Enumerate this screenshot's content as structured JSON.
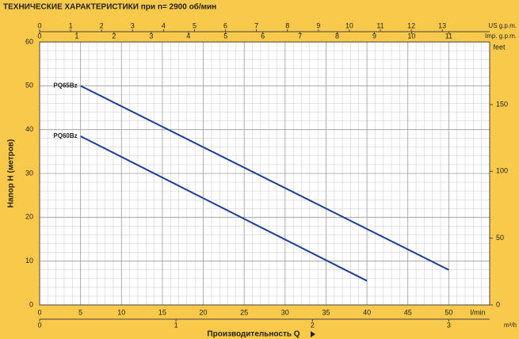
{
  "chart_data": {
    "type": "line",
    "title": "ТЕХНИЧЕСКИЕ ХАРАКТЕРИСТИКИ при n= 2900 об/мин",
    "y_label": "Напор H  (метров)",
    "x_label": "Производительность Q",
    "x_unit": "l/min",
    "xlim": [
      0,
      55
    ],
    "xticks": [
      0,
      5,
      10,
      15,
      20,
      25,
      30,
      35,
      40,
      45,
      50
    ],
    "ylim": [
      0,
      60
    ],
    "yticks": [
      0,
      10,
      20,
      30,
      40,
      50,
      60
    ],
    "y2label": "feet",
    "y2lim": [
      0,
      196.85
    ],
    "y2ticks": [
      0,
      50,
      100,
      150
    ],
    "secondary_x_axes": [
      {
        "label": "US g.p.m.",
        "lim": [
          0,
          14.53
        ],
        "ticks": [
          0,
          1,
          2,
          3,
          4,
          5,
          6,
          7,
          8,
          9,
          10,
          11,
          12,
          13
        ]
      },
      {
        "label": "Imp. g.p.m.",
        "lim": [
          0,
          12.1
        ],
        "ticks": [
          0,
          1,
          2,
          3,
          4,
          5,
          6,
          7,
          8,
          9,
          10,
          11
        ]
      },
      {
        "label": "m³/h",
        "lim": [
          0,
          3.3
        ],
        "ticks": [
          0,
          1,
          2,
          3
        ]
      }
    ],
    "grid": true,
    "series": [
      {
        "name": "PQ65Bz",
        "color": "#1c3f94",
        "x": [
          5,
          50
        ],
        "values": [
          50,
          8
        ]
      },
      {
        "name": "PQ60Bz",
        "color": "#1c3f94",
        "x": [
          5,
          40
        ],
        "values": [
          38.5,
          5.5
        ]
      }
    ]
  }
}
